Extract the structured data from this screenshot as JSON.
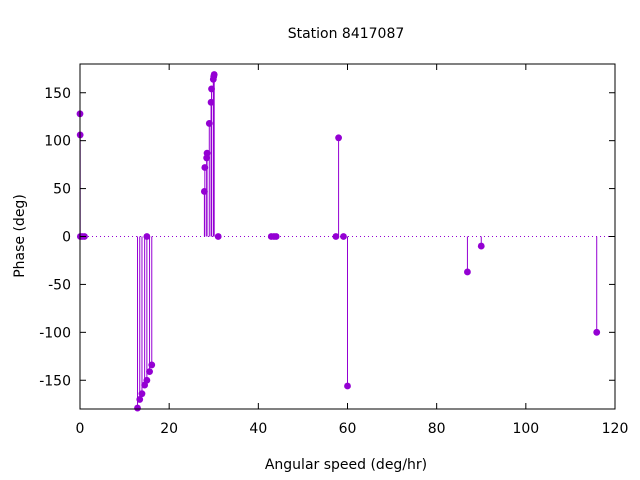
{
  "chart_data": {
    "type": "stem",
    "title": "Station 8417087",
    "xlabel": "Angular speed (deg/hr)",
    "ylabel": "Phase (deg)",
    "xlim": [
      0,
      120
    ],
    "ylim": [
      -180,
      180
    ],
    "x_ticks": [
      0,
      20,
      40,
      60,
      80,
      100,
      120
    ],
    "y_ticks": [
      -150,
      -100,
      -50,
      0,
      50,
      100,
      150
    ],
    "zero_line": "dotted",
    "grid": false,
    "series_color": "#9400d3",
    "points": [
      {
        "x": 0.0,
        "y": 128
      },
      {
        "x": 0.04,
        "y": 106
      },
      {
        "x": 0.08,
        "y": 0
      },
      {
        "x": 0.5,
        "y": 0
      },
      {
        "x": 1.0,
        "y": 0
      },
      {
        "x": 12.9,
        "y": -179
      },
      {
        "x": 13.4,
        "y": -170
      },
      {
        "x": 13.9,
        "y": -164
      },
      {
        "x": 14.5,
        "y": -155
      },
      {
        "x": 15.0,
        "y": 0
      },
      {
        "x": 15.0,
        "y": -150
      },
      {
        "x": 15.6,
        "y": -141
      },
      {
        "x": 16.1,
        "y": -134
      },
      {
        "x": 27.9,
        "y": 47
      },
      {
        "x": 28.0,
        "y": 72
      },
      {
        "x": 28.4,
        "y": 82
      },
      {
        "x": 28.5,
        "y": 87
      },
      {
        "x": 29.0,
        "y": 118
      },
      {
        "x": 29.4,
        "y": 140
      },
      {
        "x": 29.5,
        "y": 154
      },
      {
        "x": 29.9,
        "y": 164
      },
      {
        "x": 30.0,
        "y": 167
      },
      {
        "x": 30.1,
        "y": 169
      },
      {
        "x": 31.0,
        "y": 0
      },
      {
        "x": 42.9,
        "y": 0
      },
      {
        "x": 43.5,
        "y": 0
      },
      {
        "x": 44.0,
        "y": 0
      },
      {
        "x": 57.4,
        "y": 0
      },
      {
        "x": 58.0,
        "y": 103
      },
      {
        "x": 59.1,
        "y": 0
      },
      {
        "x": 60.0,
        "y": -156
      },
      {
        "x": 86.9,
        "y": -37
      },
      {
        "x": 90.0,
        "y": -10
      },
      {
        "x": 115.9,
        "y": -100
      }
    ]
  }
}
